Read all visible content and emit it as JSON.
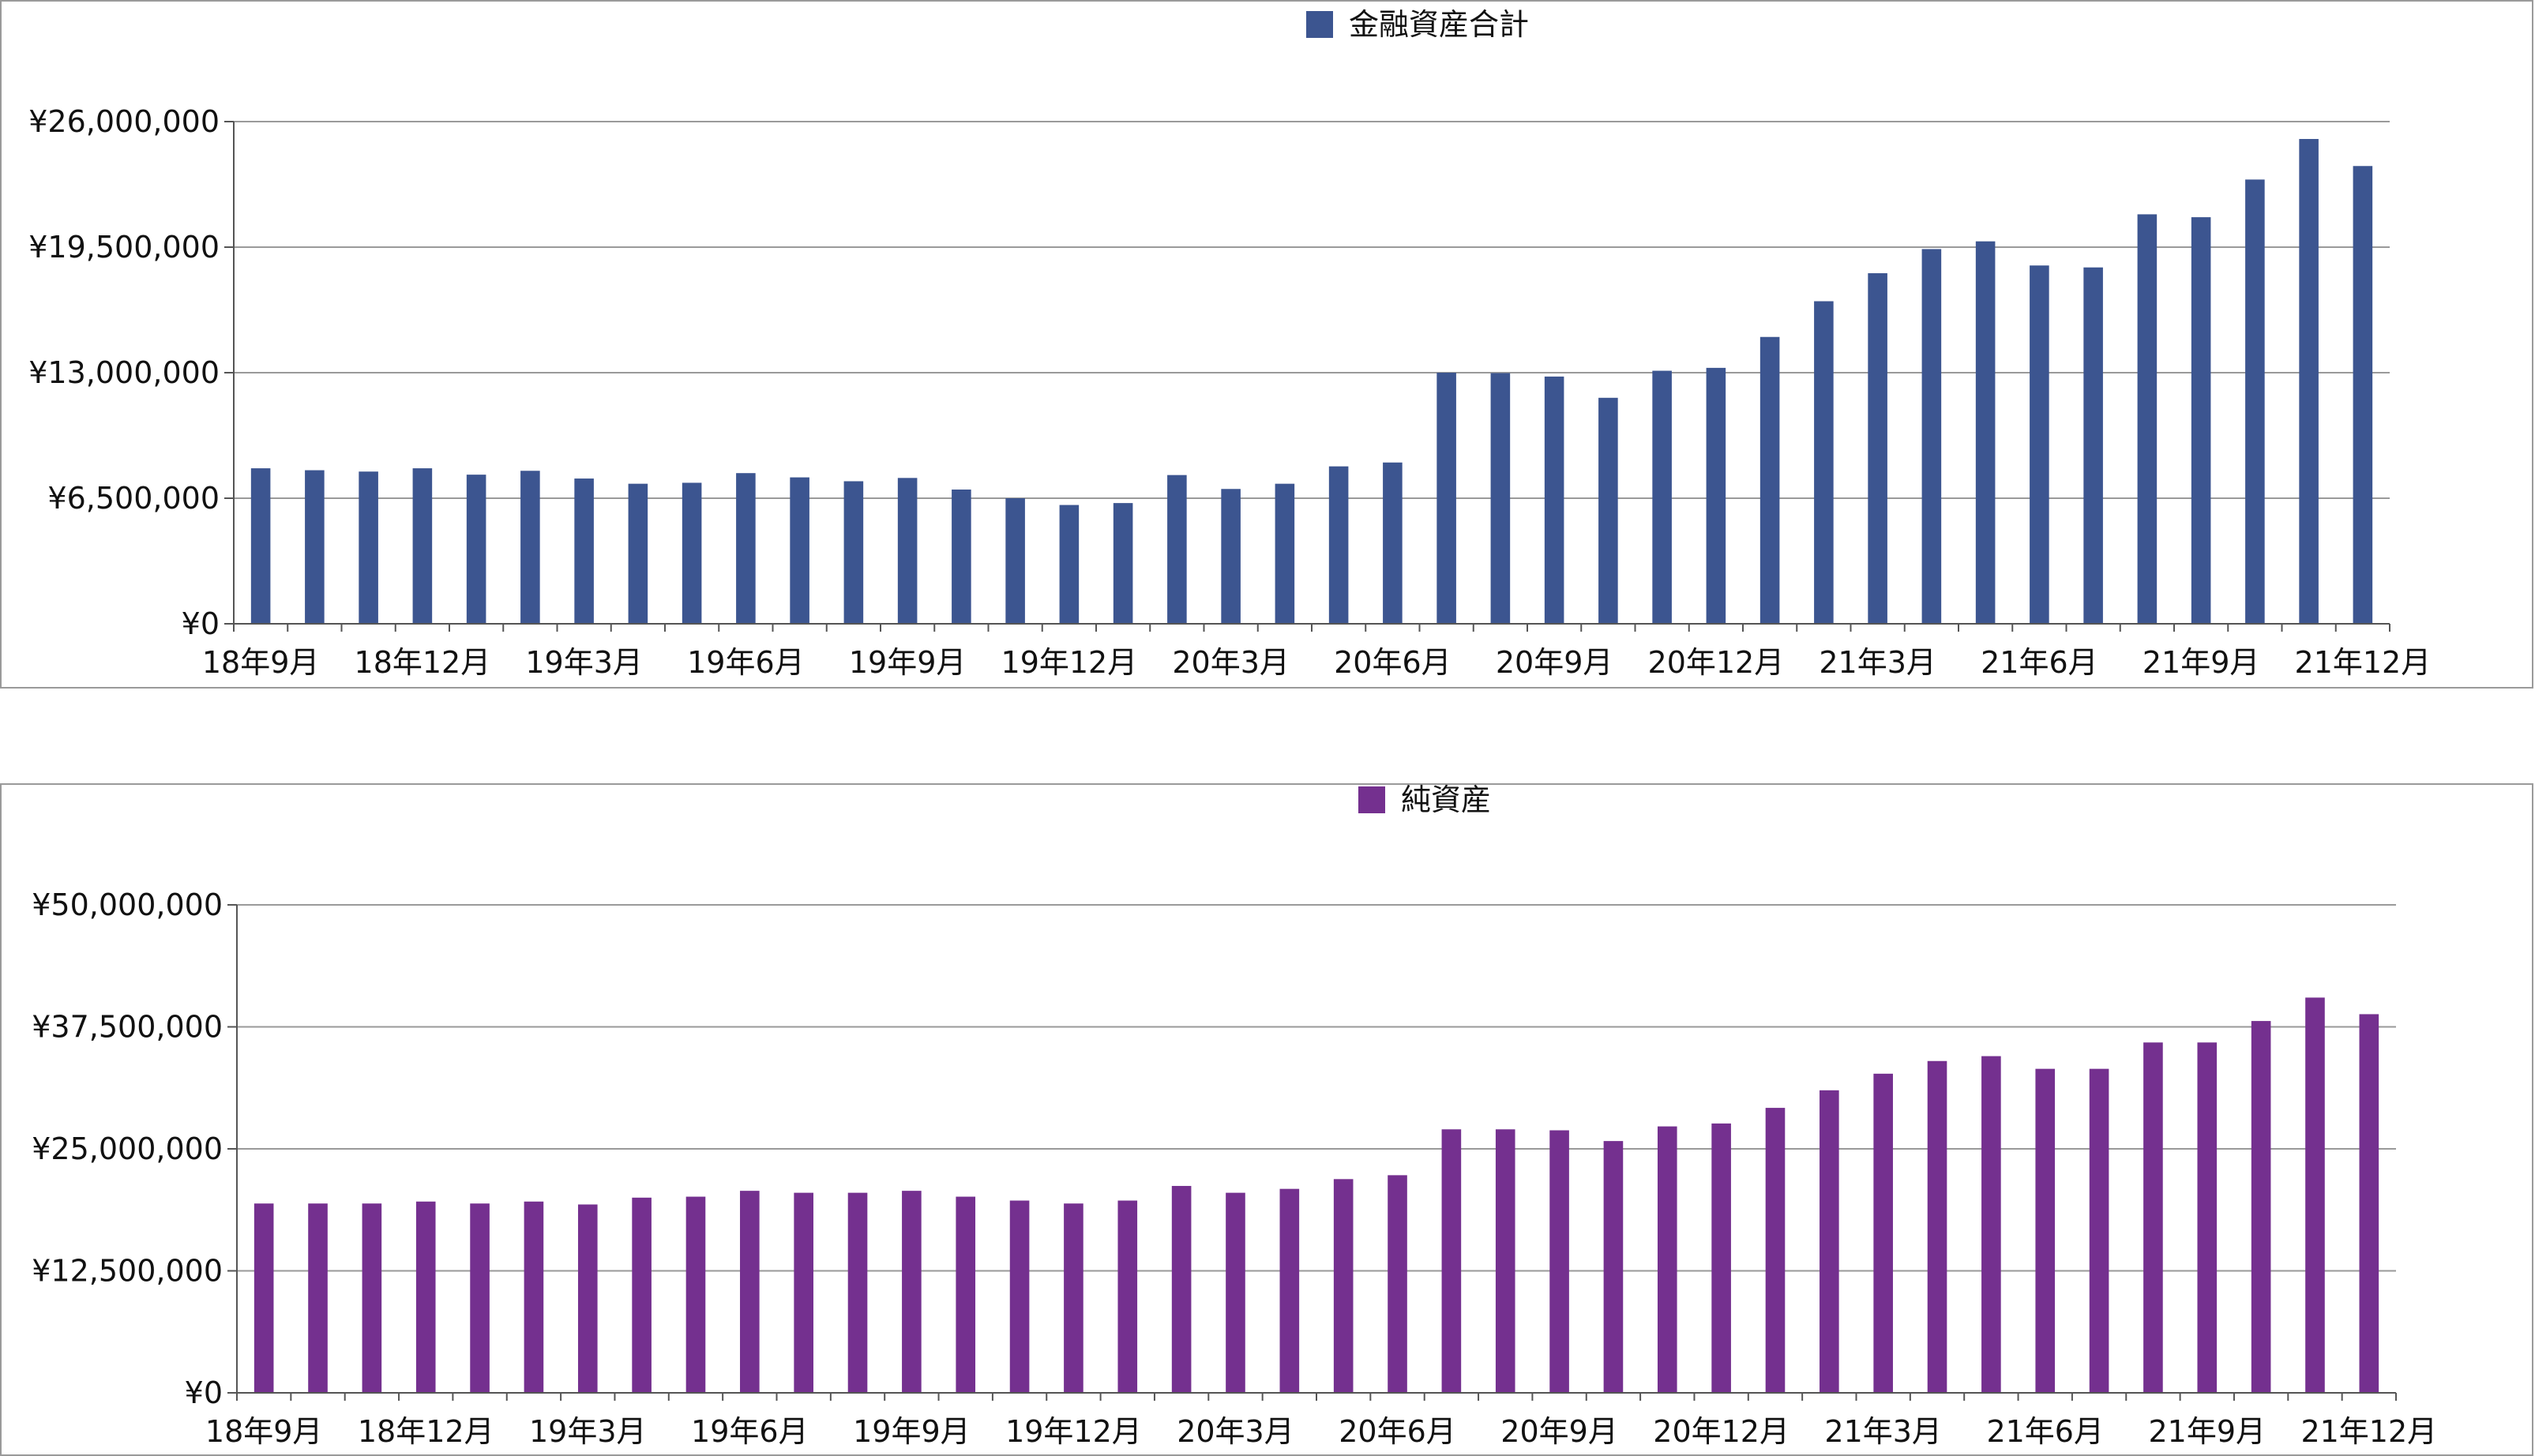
{
  "chart_data": [
    {
      "type": "bar",
      "series": [
        {
          "name": "金融資産合計",
          "color": "#3c5590",
          "values": [
            8050000,
            7950000,
            7880000,
            8050000,
            7720000,
            7920000,
            7520000,
            7250000,
            7300000,
            7800000,
            7580000,
            7380000,
            7550000,
            6950000,
            6500000,
            6150000,
            6250000,
            7700000,
            6980000,
            7250000,
            8150000,
            8350000,
            13000000,
            12980000,
            12800000,
            11700000,
            13100000,
            13250000,
            14850000,
            16700000,
            18150000,
            19400000,
            19800000,
            18550000,
            18450000,
            21200000,
            21050000,
            23000000,
            25100000,
            23700000
          ]
        }
      ],
      "x_tick_labels": [
        "18年9月",
        "18年12月",
        "19年3月",
        "19年6月",
        "19年9月",
        "19年12月",
        "20年3月",
        "20年6月",
        "20年9月",
        "20年12月",
        "21年3月",
        "21年6月",
        "21年9月",
        "21年12月"
      ],
      "y_tick_labels": [
        "¥26,000,000",
        "¥19,500,000",
        "¥13,000,000",
        "¥6,500,000",
        "¥0"
      ],
      "ylim": [
        0,
        26000000
      ],
      "grid": true,
      "legend_position": "top-center"
    },
    {
      "type": "bar",
      "series": [
        {
          "name": "純資産",
          "color": "#74308f",
          "values": [
            19400000,
            19400000,
            19400000,
            19600000,
            19400000,
            19600000,
            19300000,
            20000000,
            20100000,
            20700000,
            20500000,
            20500000,
            20700000,
            20100000,
            19700000,
            19400000,
            19700000,
            21200000,
            20500000,
            20900000,
            21900000,
            22300000,
            27000000,
            27000000,
            26900000,
            25800000,
            27300000,
            27600000,
            29200000,
            31000000,
            32700000,
            34000000,
            34500000,
            33200000,
            33200000,
            35900000,
            35900000,
            38100000,
            40500000,
            38800000
          ]
        }
      ],
      "x_tick_labels": [
        "18年9月",
        "18年12月",
        "19年3月",
        "19年6月",
        "19年9月",
        "19年12月",
        "20年3月",
        "20年6月",
        "20年9月",
        "20年12月",
        "21年3月",
        "21年6月",
        "21年9月",
        "21年12月"
      ],
      "y_tick_labels": [
        "¥50,000,000",
        "¥37,500,000",
        "¥25,000,000",
        "¥12,500,000",
        "¥0"
      ],
      "ylim": [
        0,
        50000000
      ],
      "grid": true,
      "legend_position": "top-center"
    }
  ]
}
